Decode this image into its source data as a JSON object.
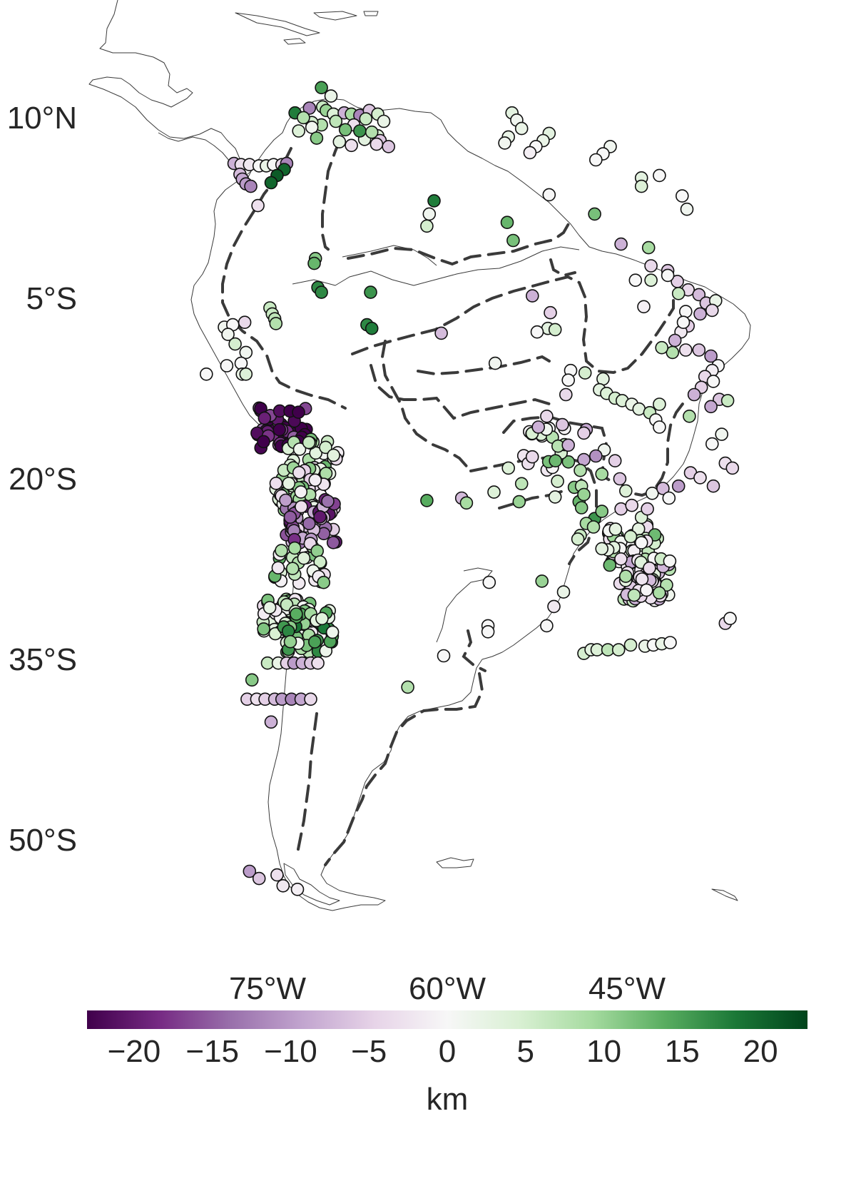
{
  "map": {
    "lat_ticks": [
      {
        "lat": 10,
        "label": "10°N"
      },
      {
        "lat": -5,
        "label": "5°S"
      },
      {
        "lat": -20,
        "label": "20°S"
      },
      {
        "lat": -35,
        "label": "35°S"
      },
      {
        "lat": -50,
        "label": "50°S"
      }
    ],
    "lon_ticks": [
      {
        "lon": -75,
        "label": "75°W"
      },
      {
        "lon": -60,
        "label": "60°W"
      },
      {
        "lon": -45,
        "label": "45°W"
      }
    ],
    "extent": {
      "lon_min": -82,
      "lon_max": -32,
      "lat_min": -57,
      "lat_max": 13
    },
    "colors": {
      "coastline": "#3a3a3a",
      "boundaries": "#3a3a3a",
      "marker_edge": "#111111"
    }
  },
  "colorbar": {
    "colormap": "PRGn",
    "vmin": -23,
    "vmax": 23,
    "ticks": [
      {
        "value": -20,
        "label": "−20"
      },
      {
        "value": -15,
        "label": "−15"
      },
      {
        "value": -10,
        "label": "−10"
      },
      {
        "value": -5,
        "label": "−5"
      },
      {
        "value": 0,
        "label": "0"
      },
      {
        "value": 5,
        "label": "5"
      },
      {
        "value": 10,
        "label": "10"
      },
      {
        "value": 15,
        "label": "15"
      },
      {
        "value": 20,
        "label": "20"
      }
    ],
    "title": "km"
  },
  "chart_data": {
    "type": "scatter",
    "title": "",
    "xlabel": "",
    "ylabel": "",
    "colorbar_label": "km",
    "color_range": [
      -23,
      23
    ],
    "points_lon_lat_value": [
      [
        -70.5,
        12.5,
        15
      ],
      [
        -69.7,
        11.8,
        2
      ],
      [
        -71.5,
        10.8,
        -12
      ],
      [
        -70.4,
        10.9,
        6
      ],
      [
        -70.1,
        10.6,
        10
      ],
      [
        -69.5,
        10.3,
        4
      ],
      [
        -68.6,
        10.4,
        -8
      ],
      [
        -68.0,
        10.3,
        9
      ],
      [
        -67.3,
        10.2,
        -12
      ],
      [
        -66.5,
        10.6,
        -6
      ],
      [
        -65.8,
        10.3,
        5
      ],
      [
        -65.3,
        9.7,
        2
      ],
      [
        -66.8,
        9.9,
        6
      ],
      [
        -67.8,
        9.4,
        -3
      ],
      [
        -68.5,
        9.0,
        12
      ],
      [
        -69.3,
        9.7,
        7
      ],
      [
        -70.5,
        9.4,
        8
      ],
      [
        -71.3,
        9.6,
        5
      ],
      [
        -72.7,
        10.4,
        18
      ],
      [
        -72.0,
        10.0,
        8
      ],
      [
        -71.3,
        9.2,
        1
      ],
      [
        -72.4,
        8.9,
        4
      ],
      [
        -70.9,
        8.3,
        11
      ],
      [
        -69.0,
        8.0,
        3
      ],
      [
        -68.0,
        7.7,
        -3
      ],
      [
        -65.8,
        8.5,
        4
      ],
      [
        -65.6,
        8.1,
        -6
      ],
      [
        -65.9,
        7.8,
        -4
      ],
      [
        -64.9,
        7.6,
        -6
      ],
      [
        -66.9,
        8.2,
        3
      ],
      [
        -67.3,
        8.9,
        16
      ],
      [
        -66.3,
        8.8,
        8
      ],
      [
        -77.8,
        6.2,
        -8
      ],
      [
        -77.2,
        6.1,
        -3
      ],
      [
        -76.5,
        6.1,
        -2
      ],
      [
        -75.7,
        6.0,
        0
      ],
      [
        -75.1,
        6.0,
        2
      ],
      [
        -74.5,
        6.1,
        0
      ],
      [
        -73.8,
        6.1,
        -4
      ],
      [
        -73.4,
        6.2,
        -12
      ],
      [
        -73.6,
        5.7,
        20
      ],
      [
        -74.2,
        5.2,
        21
      ],
      [
        -74.7,
        4.6,
        20
      ],
      [
        -77.3,
        5.3,
        -7
      ],
      [
        -77.1,
        4.9,
        -9
      ],
      [
        -76.8,
        4.5,
        -10
      ],
      [
        -76.4,
        4.3,
        -12
      ],
      [
        -75.8,
        2.7,
        -3
      ],
      [
        -54.6,
        10.4,
        3
      ],
      [
        -54.2,
        9.8,
        1
      ],
      [
        -53.8,
        9.1,
        2
      ],
      [
        -54.9,
        8.4,
        2
      ],
      [
        -55.2,
        7.9,
        1
      ],
      [
        -51.5,
        8.7,
        3
      ],
      [
        -52.0,
        8.1,
        2
      ],
      [
        -52.6,
        7.6,
        0
      ],
      [
        -53.1,
        7.1,
        -1
      ],
      [
        -46.4,
        7.6,
        1
      ],
      [
        -47.0,
        7.0,
        0
      ],
      [
        -47.6,
        6.5,
        0
      ],
      [
        -43.8,
        5.0,
        3
      ],
      [
        -42.3,
        5.2,
        0
      ],
      [
        -43.8,
        4.3,
        4
      ],
      [
        -51.5,
        3.6,
        0
      ],
      [
        -47.7,
        2.0,
        12
      ],
      [
        -40.4,
        3.5,
        0
      ],
      [
        -40.0,
        2.4,
        1
      ],
      [
        -43.2,
        -0.8,
        9
      ],
      [
        -61.1,
        3.1,
        18
      ],
      [
        -61.5,
        2.0,
        1
      ],
      [
        -61.7,
        1.0,
        5
      ],
      [
        -55.0,
        1.3,
        13
      ],
      [
        -54.5,
        -0.2,
        12
      ],
      [
        -52.9,
        -4.8,
        -8
      ],
      [
        -51.4,
        -6.2,
        -5
      ],
      [
        -51.6,
        -7.5,
        3
      ],
      [
        -51.0,
        -7.6,
        5
      ],
      [
        -52.5,
        -7.8,
        0
      ],
      [
        -45.5,
        -0.5,
        -8
      ],
      [
        -43.0,
        -2.3,
        -4
      ],
      [
        -41.6,
        -2.7,
        -6
      ],
      [
        -40.8,
        -3.6,
        -5
      ],
      [
        -39.9,
        -4.3,
        -4
      ],
      [
        -39.0,
        -4.7,
        -7
      ],
      [
        -38.4,
        -5.4,
        -6
      ],
      [
        -37.6,
        -5.2,
        2
      ],
      [
        -37.9,
        -6.0,
        -4
      ],
      [
        -38.9,
        -6.3,
        -8
      ],
      [
        -39.9,
        -7.3,
        -5
      ],
      [
        -40.5,
        -7.8,
        -2
      ],
      [
        -41.0,
        -8.5,
        -8
      ],
      [
        -40.1,
        -9.3,
        -3
      ],
      [
        -39.0,
        -9.3,
        -6
      ],
      [
        -38.0,
        -9.8,
        -10
      ],
      [
        -37.4,
        -10.6,
        0
      ],
      [
        -37.9,
        -11.0,
        -1
      ],
      [
        -38.5,
        -11.5,
        -4
      ],
      [
        -37.8,
        -11.9,
        0
      ],
      [
        -38.8,
        -12.4,
        -5
      ],
      [
        -39.4,
        -13.0,
        -8
      ],
      [
        -37.3,
        -13.4,
        -6
      ],
      [
        -38.0,
        -14.0,
        -9
      ],
      [
        -39.8,
        -14.8,
        8
      ],
      [
        -43.6,
        -5.7,
        -1
      ],
      [
        -44.3,
        -3.5,
        0
      ],
      [
        -43.0,
        -3.5,
        4
      ],
      [
        -41.6,
        -3.1,
        0
      ],
      [
        -40.7,
        -4.6,
        6
      ],
      [
        -41.2,
        -9.5,
        8
      ],
      [
        -42.1,
        -9.1,
        6
      ],
      [
        -40.1,
        -6.1,
        0
      ],
      [
        -40.3,
        -7.0,
        0
      ],
      [
        -71.0,
        -1.7,
        11
      ],
      [
        -71.1,
        -2.1,
        13
      ],
      [
        -70.8,
        -4.1,
        17
      ],
      [
        -70.5,
        -4.5,
        17
      ],
      [
        -74.8,
        -5.8,
        6
      ],
      [
        -74.6,
        -6.3,
        6
      ],
      [
        -74.4,
        -6.7,
        7
      ],
      [
        -74.3,
        -7.1,
        8
      ],
      [
        -78.6,
        -7.4,
        1
      ],
      [
        -77.9,
        -7.2,
        0
      ],
      [
        -78.3,
        -8.0,
        1
      ],
      [
        -77.7,
        -8.8,
        5
      ],
      [
        -76.9,
        -7.0,
        -4
      ],
      [
        -76.8,
        -9.5,
        1
      ],
      [
        -77.2,
        -10.4,
        0
      ],
      [
        -78.4,
        -10.6,
        0
      ],
      [
        -77.1,
        -11.3,
        2
      ],
      [
        -76.8,
        -11.3,
        4
      ],
      [
        -80.1,
        -11.3,
        0
      ],
      [
        -66.4,
        -4.5,
        16
      ],
      [
        -66.7,
        -7.2,
        17
      ],
      [
        -66.3,
        -7.5,
        18
      ],
      [
        -60.5,
        -7.9,
        -7
      ],
      [
        -56.0,
        -10.4,
        1
      ],
      [
        -50.1,
        -13.0,
        -4
      ],
      [
        -47.0,
        -11.7,
        3
      ],
      [
        -49.7,
        -11.0,
        0
      ],
      [
        -49.9,
        -11.8,
        0
      ],
      [
        -48.5,
        -11.2,
        5
      ],
      [
        -47.3,
        -12.6,
        3
      ],
      [
        -46.7,
        -12.9,
        4
      ],
      [
        -46.0,
        -13.3,
        5
      ],
      [
        -45.4,
        -13.5,
        4
      ],
      [
        -44.6,
        -13.8,
        2
      ],
      [
        -44.0,
        -14.2,
        3
      ],
      [
        -43.1,
        -14.5,
        6
      ],
      [
        -42.3,
        -13.8,
        4
      ],
      [
        -42.6,
        -15.1,
        0
      ],
      [
        -42.3,
        -15.7,
        0
      ],
      [
        -51.7,
        -14.8,
        -4
      ],
      [
        -52.4,
        -15.7,
        -8
      ],
      [
        -50.4,
        -15.5,
        -6
      ],
      [
        -48.4,
        -15.9,
        -9
      ],
      [
        -48.6,
        -16.2,
        -5
      ],
      [
        -49.9,
        -17.2,
        -8
      ],
      [
        -46.9,
        -17.6,
        1
      ],
      [
        -47.6,
        -18.1,
        -11
      ],
      [
        -48.6,
        -18.4,
        -9
      ],
      [
        -46.0,
        -18.5,
        -5
      ],
      [
        -45.6,
        -20.0,
        -6
      ],
      [
        -47.1,
        -19.6,
        9
      ],
      [
        -48.9,
        -19.3,
        8
      ],
      [
        -50.8,
        -20.2,
        5
      ],
      [
        -49.4,
        -20.7,
        11
      ],
      [
        -51.0,
        -21.5,
        3
      ],
      [
        -53.8,
        -20.4,
        7
      ],
      [
        -54.9,
        -19.1,
        4
      ],
      [
        -54.0,
        -21.9,
        10
      ],
      [
        -56.1,
        -21.1,
        4
      ],
      [
        -58.8,
        -21.6,
        -7
      ],
      [
        -58.4,
        -22.0,
        9
      ],
      [
        -61.7,
        -21.8,
        14
      ],
      [
        -49.0,
        -21.9,
        13
      ],
      [
        -48.8,
        -22.4,
        11
      ],
      [
        -47.7,
        -23.3,
        16
      ],
      [
        -48.4,
        -23.7,
        9
      ],
      [
        -48.9,
        -24.7,
        6
      ],
      [
        -49.1,
        -25.0,
        5
      ],
      [
        -47.8,
        -24.0,
        8
      ],
      [
        -47.1,
        -22.7,
        11
      ],
      [
        -45.5,
        -22.5,
        -5
      ],
      [
        -45.1,
        -21.0,
        4
      ],
      [
        -44.6,
        -22.2,
        -4
      ],
      [
        -43.8,
        -23.2,
        4
      ],
      [
        -43.3,
        -22.5,
        -5
      ],
      [
        -42.9,
        -21.2,
        1
      ],
      [
        -42.0,
        -20.8,
        -7
      ],
      [
        -40.7,
        -20.6,
        -10
      ],
      [
        -41.5,
        -21.6,
        0
      ],
      [
        -39.7,
        -19.5,
        -5
      ],
      [
        -38.9,
        -19.9,
        -3
      ],
      [
        -37.8,
        -20.6,
        -6
      ],
      [
        -36.8,
        -18.7,
        -3
      ],
      [
        -36.2,
        -19.1,
        -4
      ],
      [
        -36.6,
        -13.5,
        6
      ],
      [
        -37.1,
        -16.3,
        1
      ],
      [
        -37.9,
        -17.1,
        0
      ],
      [
        -43.8,
        -25.3,
        0
      ],
      [
        -44.7,
        -24.8,
        5
      ],
      [
        -46.1,
        -25.7,
        3
      ],
      [
        -46.6,
        -25.9,
        2
      ],
      [
        -47.1,
        -25.8,
        3
      ],
      [
        -56.5,
        -28.6,
        0
      ],
      [
        -52.1,
        -28.5,
        10
      ],
      [
        -50.3,
        -29.4,
        2
      ],
      [
        -51.1,
        -30.6,
        -2
      ],
      [
        -51.7,
        -32.2,
        0
      ],
      [
        -56.6,
        -32.2,
        0
      ],
      [
        -56.6,
        -32.7,
        0
      ],
      [
        -36.8,
        -32.0,
        -4
      ],
      [
        -36.4,
        -31.6,
        0
      ],
      [
        -48.6,
        -34.5,
        5
      ],
      [
        -48.0,
        -34.2,
        3
      ],
      [
        -47.5,
        -34.2,
        4
      ],
      [
        -46.6,
        -34.2,
        7
      ],
      [
        -45.7,
        -34.2,
        5
      ],
      [
        -44.7,
        -33.8,
        5
      ],
      [
        -43.5,
        -33.9,
        2
      ],
      [
        -42.8,
        -33.8,
        0
      ],
      [
        -42.1,
        -33.7,
        2
      ],
      [
        -41.4,
        -33.6,
        0
      ],
      [
        -60.3,
        -34.7,
        0
      ],
      [
        -63.3,
        -37.3,
        8
      ],
      [
        -48.8,
        -20.6,
        7
      ],
      [
        -48.6,
        -21.3,
        10
      ],
      [
        -76.3,
        -36.7,
        11
      ],
      [
        -75.0,
        -35.3,
        6
      ],
      [
        -74.1,
        -35.3,
        2
      ],
      [
        -73.4,
        -35.3,
        -5
      ],
      [
        -72.8,
        -35.3,
        -10
      ],
      [
        -72.1,
        -35.3,
        -8
      ],
      [
        -71.4,
        -35.3,
        -6
      ],
      [
        -70.8,
        -35.3,
        -3
      ],
      [
        -76.7,
        -38.3,
        -5
      ],
      [
        -75.9,
        -38.3,
        -3
      ],
      [
        -75.2,
        -38.3,
        -5
      ],
      [
        -74.4,
        -38.3,
        -7
      ],
      [
        -73.8,
        -38.3,
        -10
      ],
      [
        -73.0,
        -38.3,
        -12
      ],
      [
        -72.2,
        -38.3,
        -9
      ],
      [
        -71.4,
        -38.3,
        -4
      ],
      [
        -74.7,
        -40.2,
        -8
      ],
      [
        -76.5,
        -52.6,
        -10
      ],
      [
        -75.7,
        -53.2,
        -6
      ],
      [
        -74.2,
        -52.9,
        -3
      ],
      [
        -73.7,
        -53.8,
        -2
      ],
      [
        -72.5,
        -54.1,
        -1
      ]
    ],
    "clusters_lon_lat_value_count": [
      [
        -73.8,
        -15.7,
        -23,
        45
      ],
      [
        -71.2,
        -18.4,
        5,
        30
      ],
      [
        -72.2,
        -20.8,
        4,
        60
      ],
      [
        -71.4,
        -23.5,
        -12,
        50
      ],
      [
        -72.3,
        -27.1,
        5,
        30
      ],
      [
        -73.3,
        -31.6,
        5,
        60
      ],
      [
        -71.6,
        -32.6,
        10,
        40
      ],
      [
        -51.6,
        -17.5,
        4,
        20
      ],
      [
        -44.5,
        -25.5,
        4,
        40
      ],
      [
        -43.5,
        -28.4,
        0,
        60
      ]
    ]
  }
}
